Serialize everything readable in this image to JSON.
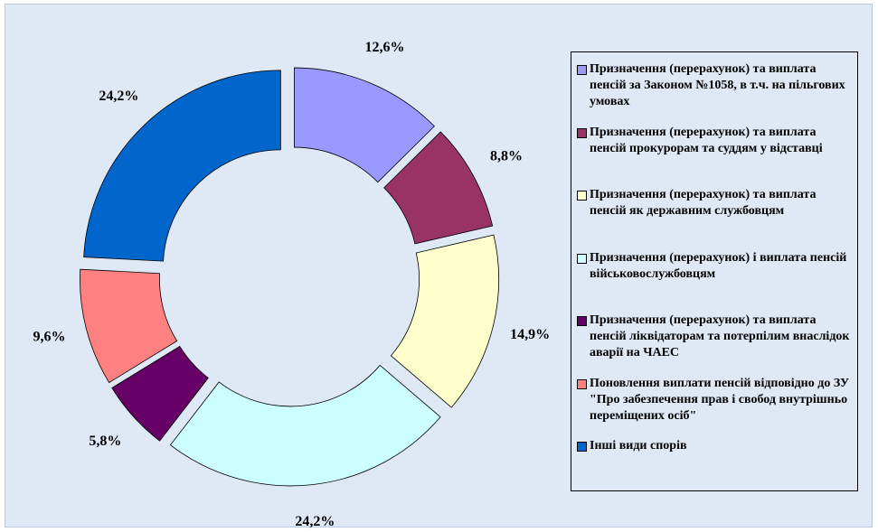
{
  "chart_data": {
    "type": "pie",
    "donut": true,
    "categories": [
      "Призначення (перерахунок) та виплата пенсій за Законом №1058, в т.ч. на пільгових умовах",
      "Призначення (перерахунок) та виплата пенсій прокурорам та суддям у відставці",
      "Призначення (перерахунок) та виплата пенсій як державним службовцям",
      "Призначення (перерахунок) і виплата пенсій військовослужбовцям",
      "Призначення (перерахунок) та виплата пенсій ліквідаторам та потерпілим внаслідок аварії на ЧАЕС",
      "Поновлення виплати пенсій відповідно до ЗУ \"Про забезпечення прав і свобод внутрішньо переміщених осіб\"",
      "Інші види спорів"
    ],
    "values": [
      12.6,
      8.8,
      14.9,
      24.2,
      5.8,
      9.6,
      24.2
    ],
    "value_labels": [
      "12,6%",
      "8,8%",
      "14,9%",
      "24,2%",
      "5,8%",
      "9,6%",
      "24,2%"
    ],
    "colors": [
      "#9999ff",
      "#993366",
      "#ffffcc",
      "#ccffff",
      "#660066",
      "#ff8080",
      "#0066cc"
    ],
    "legend": "right"
  }
}
